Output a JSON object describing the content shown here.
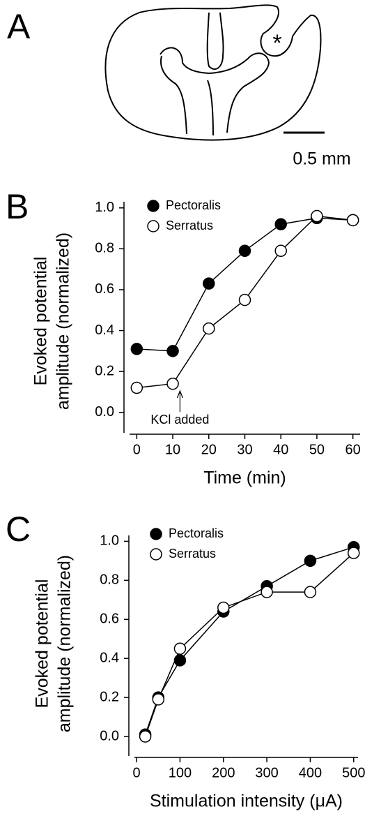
{
  "panel_a": {
    "label": "A",
    "annotation": "*",
    "scale_label": "0.5 mm"
  },
  "chart_data": [
    {
      "type": "line",
      "panel_label": "B",
      "ylabel": [
        "Evoked potential",
        "amplitude (normalized)"
      ],
      "xlabel": "Time (min)",
      "x": [
        0,
        10,
        20,
        30,
        40,
        50,
        60
      ],
      "series": [
        {
          "name": "Pectoralis",
          "color": "#000000",
          "values": [
            0.31,
            0.3,
            0.63,
            0.79,
            0.92,
            0.95,
            0.94
          ]
        },
        {
          "name": "Serratus",
          "color": "#ffffff",
          "values": [
            0.12,
            0.14,
            0.41,
            0.55,
            0.79,
            0.96,
            0.94
          ]
        }
      ],
      "annotation": {
        "text": "KCl added",
        "x": 12
      },
      "xlim": [
        -2,
        62
      ],
      "ylim": [
        -0.1,
        1.03
      ],
      "xticks": [
        0,
        10,
        20,
        30,
        40,
        50,
        60
      ],
      "yticks": [
        {
          "value": 0,
          "label": "0.0"
        },
        0.2,
        0.4,
        0.6,
        0.8,
        {
          "value": 1,
          "label": "1.0"
        }
      ]
    },
    {
      "type": "line",
      "panel_label": "C",
      "ylabel": [
        "Evoked potential",
        "amplitude (normalized)"
      ],
      "xlabel": "Stimulation intensity (μA)",
      "x": [
        20,
        50,
        100,
        200,
        300,
        400,
        500
      ],
      "series": [
        {
          "name": "Pectoralis",
          "color": "#000000",
          "values": [
            0.01,
            0.2,
            0.39,
            0.64,
            0.77,
            0.9,
            0.97
          ]
        },
        {
          "name": "Serratus",
          "color": "#ffffff",
          "values": [
            0.0,
            0.19,
            0.45,
            0.66,
            0.74,
            0.74,
            0.94
          ]
        }
      ],
      "xlim": [
        -5,
        510
      ],
      "ylim": [
        -0.1,
        1.03
      ],
      "xticks": [
        0,
        100,
        200,
        300,
        400,
        500
      ],
      "yticks": [
        {
          "value": 0,
          "label": "0.0"
        },
        0.2,
        0.4,
        0.6,
        0.8,
        {
          "value": 1,
          "label": "1.0"
        }
      ]
    }
  ]
}
